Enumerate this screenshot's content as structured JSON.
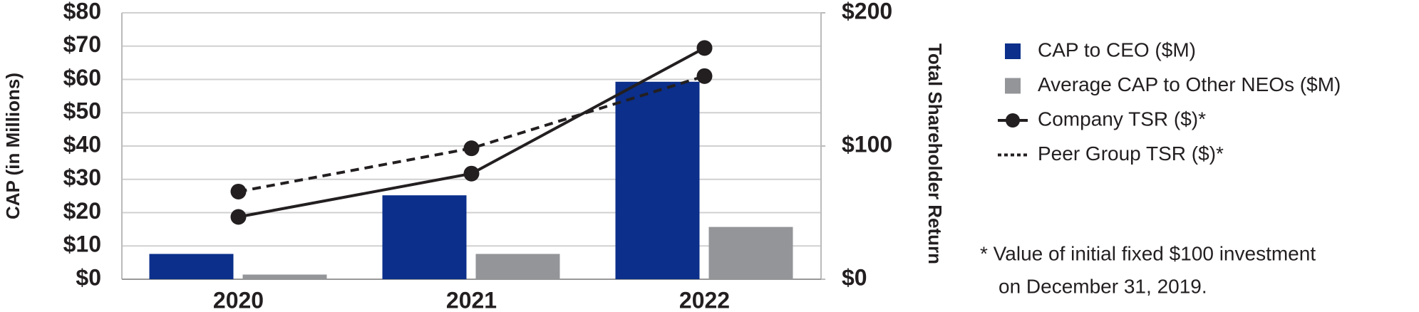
{
  "chart_data": {
    "type": "bar",
    "ylabel": "CAP (in Millions)",
    "y2label": "Total Shareholder Return",
    "categories": [
      "2020",
      "2021",
      "2022"
    ],
    "series": [
      {
        "name": "CAP to CEO ($M)",
        "type": "bar",
        "color": "#0b2f8a",
        "values": [
          7.6,
          25.2,
          59.3
        ]
      },
      {
        "name": "Average CAP to Other NEOs ($M)",
        "type": "bar",
        "color": "#939598",
        "values": [
          1.4,
          7.6,
          15.7
        ]
      },
      {
        "name": "Company TSR ($)*",
        "type": "line",
        "axis": "y2",
        "dashed": false,
        "color": "#231f20",
        "values": [
          46.8,
          79.3,
          173.6
        ]
      },
      {
        "name": "Peer Group TSR ($)*",
        "type": "line",
        "axis": "y2",
        "dashed": true,
        "color": "#231f20",
        "values": [
          65.8,
          98.3,
          152.5
        ]
      }
    ],
    "ylim": [
      0,
      80
    ],
    "yticks": [
      {
        "value": 0,
        "label": "$0"
      },
      {
        "value": 10,
        "label": "$10"
      },
      {
        "value": 20,
        "label": "$20"
      },
      {
        "value": 30,
        "label": "$30"
      },
      {
        "value": 40,
        "label": "$40"
      },
      {
        "value": 50,
        "label": "$50"
      },
      {
        "value": 60,
        "label": "$60"
      },
      {
        "value": 70,
        "label": "$70"
      },
      {
        "value": 80,
        "label": "$80"
      }
    ],
    "y2lim": [
      0,
      200
    ],
    "y2ticks": [
      {
        "value": 0,
        "label": "$0"
      },
      {
        "value": 100,
        "label": "$100"
      },
      {
        "value": 200,
        "label": "$200"
      }
    ],
    "grid": true,
    "legend": "right",
    "annotation": [
      "* Value of initial fixed $100 investment",
      "on December 31, 2019."
    ]
  }
}
